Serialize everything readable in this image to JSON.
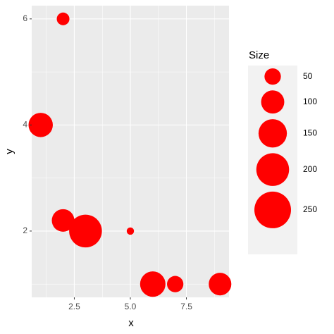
{
  "chart_data": {
    "type": "scatter",
    "x_label": "x",
    "y_label": "y",
    "x": [
      2,
      1,
      2,
      3,
      5,
      6,
      7,
      9
    ],
    "values": [
      6,
      4,
      2.2,
      2,
      2,
      1,
      1,
      1
    ],
    "sizes": [
      30,
      110,
      95,
      200,
      10,
      120,
      50,
      95
    ],
    "color": "#ff0000",
    "xlim": [
      0.6,
      9.4
    ],
    "ylim": [
      0.75,
      6.25
    ],
    "xticks": [
      2.5,
      {
        "value": 5,
        "label": "5.0"
      },
      7.5
    ],
    "yticks": [
      2,
      4,
      6
    ],
    "grid": true,
    "legend": {
      "title": "Size",
      "sizes": [
        50,
        100,
        150,
        200,
        250
      ],
      "position": "right"
    }
  }
}
